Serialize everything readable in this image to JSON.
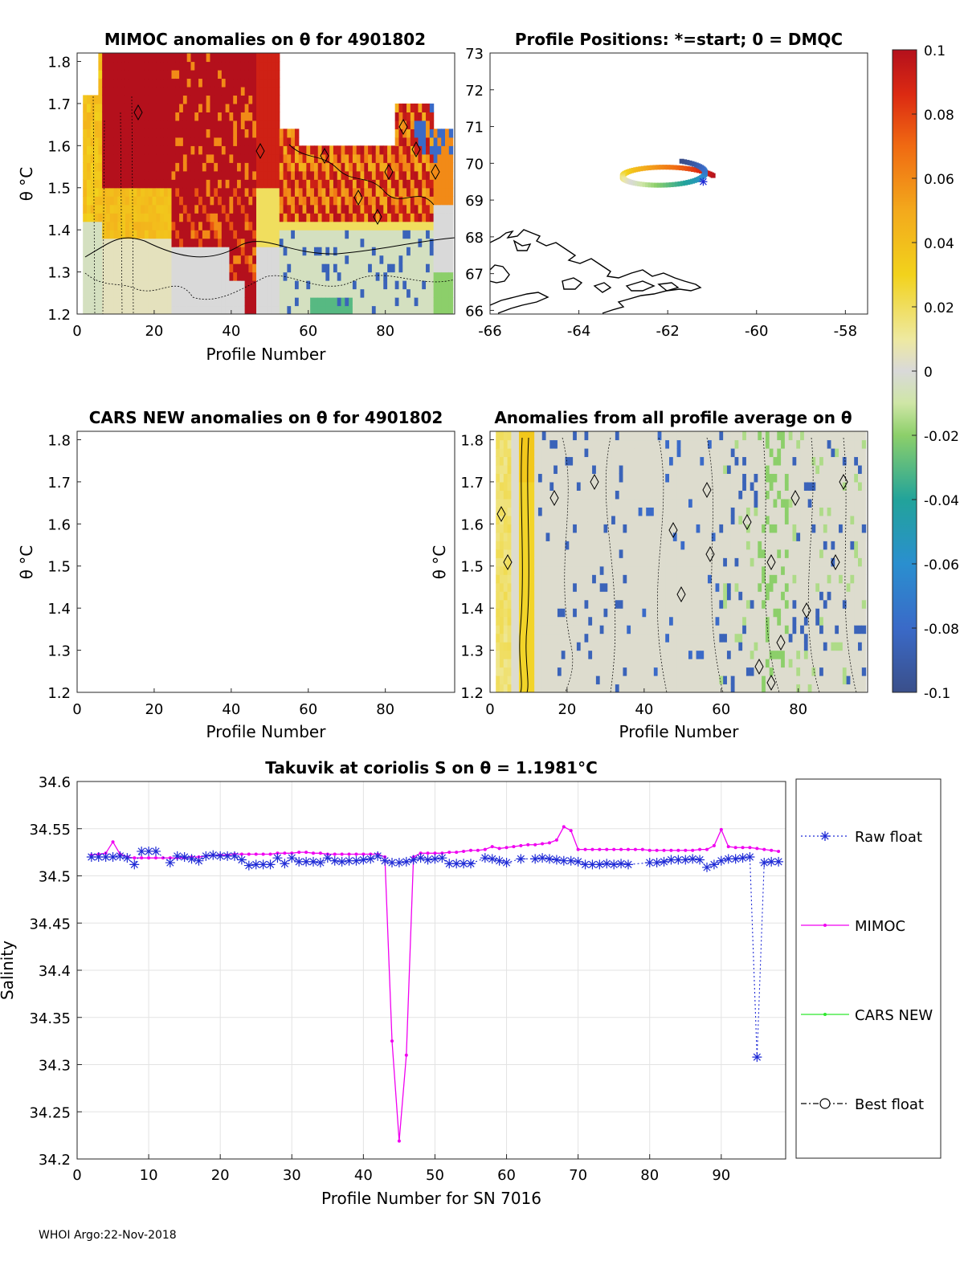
{
  "footer": "WHOI Argo:22-Nov-2018",
  "colorbar": {
    "ticks": [
      "0.1",
      "0.08",
      "0.06",
      "0.04",
      "0.02",
      "0",
      "-0.02",
      "-0.04",
      "-0.06",
      "-0.08",
      "-0.1"
    ],
    "range": [
      -0.1,
      0.1
    ]
  },
  "panels": {
    "mimoc": {
      "title": "MIMOC anomalies on θ  for 4901802",
      "xlabel": "Profile Number",
      "ylabel": "θ °C",
      "xticks": [
        "0",
        "20",
        "40",
        "60",
        "80"
      ],
      "yticks": [
        "1.2",
        "1.3",
        "1.4",
        "1.5",
        "1.6",
        "1.7",
        "1.8"
      ],
      "xlim": [
        0,
        98
      ],
      "ylim": [
        1.2,
        1.82
      ]
    },
    "positions": {
      "title": "Profile Positions: *=start; 0 = DMQC",
      "xticks": [
        "-66",
        "-64",
        "-62",
        "-60",
        "-58"
      ],
      "yticks": [
        "66",
        "67",
        "68",
        "69",
        "70",
        "71",
        "72",
        "73"
      ],
      "xlim": [
        -66,
        -57.5
      ],
      "ylim": [
        65.9,
        73
      ]
    },
    "cars": {
      "title": "CARS NEW anomalies on θ for 4901802",
      "xlabel": "Profile Number",
      "ylabel": "θ °C",
      "xticks": [
        "0",
        "20",
        "40",
        "60",
        "80"
      ],
      "yticks": [
        "1.2",
        "1.3",
        "1.4",
        "1.5",
        "1.6",
        "1.7",
        "1.8"
      ]
    },
    "allavg": {
      "title": "Anomalies from all profile average on θ",
      "xlabel": "Profile Number",
      "ylabel": "θ °C",
      "xticks": [
        "0",
        "20",
        "40",
        "60",
        "80"
      ],
      "yticks": [
        "1.2",
        "1.3",
        "1.4",
        "1.5",
        "1.6",
        "1.7",
        "1.8"
      ]
    }
  },
  "chart_data": {
    "type": "line",
    "title": "Takuvik at coriolis S on θ = 1.1981°C",
    "xlabel": "Profile Number for SN 7016",
    "ylabel": "Salinity",
    "xlim": [
      0,
      99
    ],
    "ylim": [
      34.2,
      34.6
    ],
    "xticks": [
      "0",
      "10",
      "20",
      "30",
      "40",
      "50",
      "60",
      "70",
      "80",
      "90"
    ],
    "yticks": [
      "34.6",
      "34.55",
      "34.5",
      "34.45",
      "34.4",
      "34.35",
      "34.3",
      "34.25",
      "34.2"
    ],
    "legend": [
      "Raw float",
      "MIMOC",
      "CARS NEW",
      "Best float"
    ],
    "series": [
      {
        "name": "Raw float",
        "x": [
          2,
          3,
          4,
          5,
          6,
          7,
          8,
          9,
          10,
          11,
          13,
          14,
          15,
          16,
          17,
          18,
          19,
          20,
          21,
          22,
          23,
          24,
          25,
          26,
          27,
          28,
          29,
          30,
          31,
          32,
          33,
          34,
          35,
          36,
          37,
          38,
          39,
          40,
          41,
          42,
          43,
          44,
          45,
          46,
          47,
          48,
          49,
          50,
          51,
          52,
          53,
          54,
          55,
          57,
          58,
          59,
          60,
          62,
          64,
          65,
          66,
          67,
          68,
          69,
          70,
          71,
          72,
          73,
          74,
          75,
          76,
          77,
          80,
          81,
          82,
          83,
          84,
          85,
          86,
          87,
          88,
          89,
          90,
          91,
          92,
          93,
          94,
          95,
          96,
          97,
          98
        ],
        "values": [
          34.52,
          34.52,
          34.52,
          34.52,
          34.521,
          34.519,
          34.512,
          34.526,
          34.526,
          34.526,
          34.514,
          34.521,
          34.52,
          34.518,
          34.516,
          34.521,
          34.522,
          34.521,
          34.521,
          34.521,
          34.517,
          34.511,
          34.512,
          34.512,
          34.512,
          34.519,
          34.513,
          34.519,
          34.515,
          34.515,
          34.515,
          34.514,
          34.519,
          34.516,
          34.515,
          34.516,
          34.516,
          34.517,
          34.518,
          34.521,
          34.516,
          34.514,
          34.514,
          34.515,
          34.517,
          34.519,
          34.517,
          34.518,
          34.519,
          34.513,
          34.513,
          34.513,
          34.513,
          34.519,
          34.518,
          34.516,
          34.514,
          34.518,
          34.518,
          34.519,
          34.518,
          34.517,
          34.516,
          34.516,
          34.515,
          34.512,
          34.512,
          34.512,
          34.513,
          34.512,
          34.513,
          34.512,
          34.514,
          34.514,
          34.515,
          34.517,
          34.517,
          34.517,
          34.518,
          34.517,
          34.509,
          34.512,
          34.516,
          34.518,
          34.518,
          34.519,
          34.52,
          34.308,
          34.514,
          34.515,
          34.515
        ]
      },
      {
        "name": "MIMOC",
        "x": [
          2,
          3,
          4,
          5,
          6,
          7,
          8,
          9,
          10,
          11,
          12,
          13,
          14,
          15,
          16,
          17,
          18,
          19,
          20,
          21,
          22,
          23,
          24,
          25,
          26,
          27,
          28,
          29,
          30,
          31,
          32,
          33,
          34,
          35,
          36,
          37,
          38,
          39,
          40,
          41,
          42,
          43,
          44,
          45,
          46,
          47,
          48,
          49,
          50,
          51,
          52,
          53,
          54,
          55,
          56,
          57,
          58,
          59,
          60,
          61,
          62,
          63,
          64,
          65,
          66,
          67,
          68,
          69,
          70,
          71,
          72,
          73,
          74,
          75,
          76,
          77,
          78,
          79,
          80,
          81,
          82,
          83,
          84,
          85,
          86,
          87,
          88,
          89,
          90,
          91,
          92,
          93,
          94,
          95,
          96,
          97,
          98
        ],
        "values": [
          34.522,
          34.523,
          34.524,
          34.536,
          34.523,
          34.52,
          34.519,
          34.519,
          34.519,
          34.519,
          34.519,
          34.519,
          34.519,
          34.519,
          34.52,
          34.52,
          34.521,
          34.522,
          34.522,
          34.522,
          34.523,
          34.523,
          34.523,
          34.523,
          34.523,
          34.523,
          34.524,
          34.524,
          34.524,
          34.525,
          34.525,
          34.524,
          34.524,
          34.523,
          34.523,
          34.523,
          34.523,
          34.523,
          34.523,
          34.523,
          34.523,
          34.52,
          34.325,
          34.219,
          34.31,
          34.52,
          34.524,
          34.524,
          34.524,
          34.524,
          34.525,
          34.525,
          34.526,
          34.527,
          34.527,
          34.528,
          34.531,
          34.529,
          34.53,
          34.531,
          34.532,
          34.533,
          34.533,
          34.534,
          34.535,
          34.538,
          34.552,
          34.548,
          34.528,
          34.528,
          34.528,
          34.528,
          34.528,
          34.528,
          34.528,
          34.528,
          34.528,
          34.528,
          34.527,
          34.527,
          34.527,
          34.527,
          34.527,
          34.527,
          34.527,
          34.528,
          34.528,
          34.532,
          34.549,
          34.531,
          34.53,
          34.53,
          34.53,
          34.529,
          34.528,
          34.527,
          34.526
        ]
      },
      {
        "name": "CARS NEW",
        "x": [],
        "values": []
      },
      {
        "name": "Best float",
        "x": [],
        "values": []
      }
    ]
  }
}
